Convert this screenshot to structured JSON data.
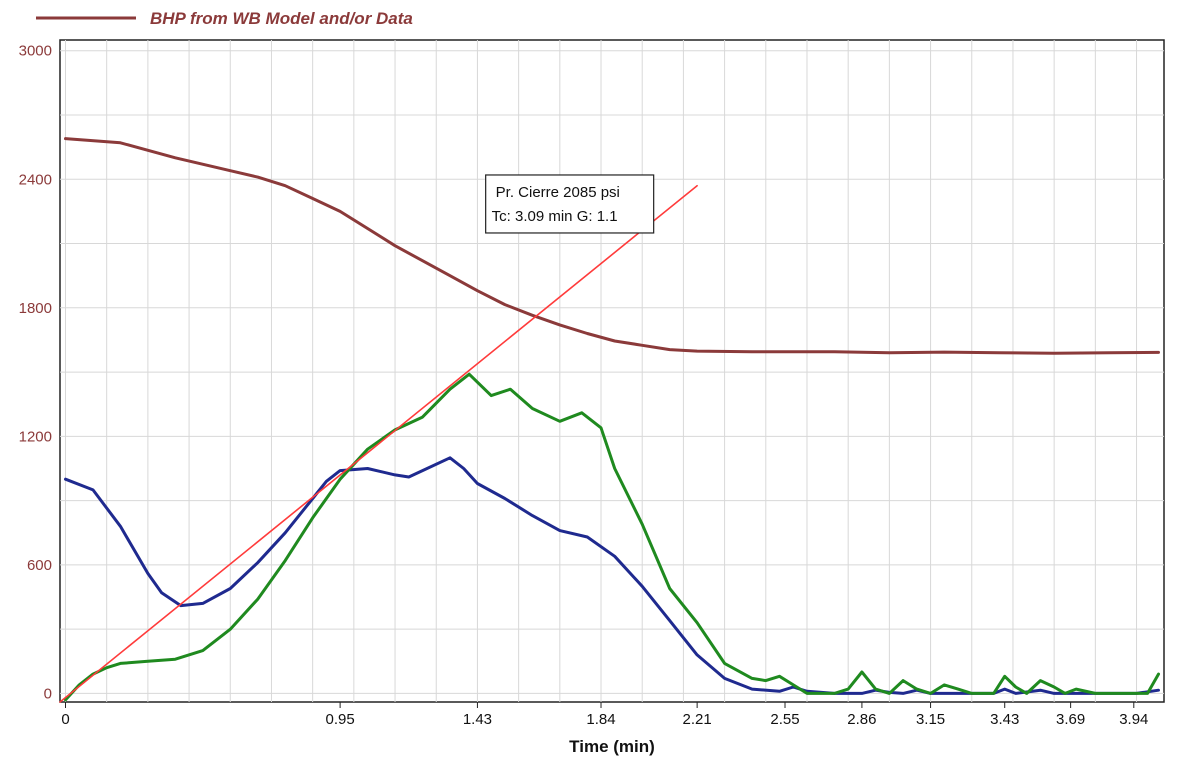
{
  "chart_data": {
    "type": "line",
    "title": "",
    "xlabel": "Time (min)",
    "ylabel": "",
    "grid": true,
    "legend": {
      "placement": "top-left",
      "entries": [
        {
          "label": "BHP from WB Model and/or Data",
          "color": "#8b3a3a"
        }
      ]
    },
    "xlim": [
      -0.02,
      4.0
    ],
    "ylim": [
      -40,
      3050
    ],
    "x_ticks": [
      {
        "value": 0,
        "label": "0"
      },
      {
        "value": 1.0,
        "label": "0.95"
      },
      {
        "value": 1.5,
        "label": "1.43"
      },
      {
        "value": 1.95,
        "label": "1.84"
      },
      {
        "value": 2.3,
        "label": "2.21"
      },
      {
        "value": 2.62,
        "label": "2.55"
      },
      {
        "value": 2.9,
        "label": "2.86"
      },
      {
        "value": 3.15,
        "label": "3.15"
      },
      {
        "value": 3.42,
        "label": "3.43"
      },
      {
        "value": 3.66,
        "label": "3.69"
      },
      {
        "value": 3.89,
        "label": "3.94"
      }
    ],
    "y_ticks": [
      0,
      600,
      1200,
      1800,
      2400,
      3000
    ],
    "annotation": {
      "lines": [
        "Pr. Cierre 2085 psi",
        "Tc: 3.09 min  G: 1.1"
      ],
      "x": 1.53,
      "y": 2420
    },
    "series": [
      {
        "name": "BHP from WB Model and/or Data",
        "color": "#8b3a3a",
        "x": [
          0,
          0.2,
          0.4,
          0.6,
          0.7,
          0.8,
          0.9,
          1.0,
          1.1,
          1.2,
          1.3,
          1.4,
          1.5,
          1.6,
          1.7,
          1.8,
          1.9,
          2.0,
          2.1,
          2.2,
          2.3,
          2.5,
          2.8,
          3.0,
          3.2,
          3.4,
          3.6,
          3.8,
          3.98
        ],
        "y": [
          2590,
          2570,
          2500,
          2440,
          2410,
          2370,
          2310,
          2250,
          2170,
          2090,
          2020,
          1950,
          1880,
          1815,
          1765,
          1720,
          1680,
          1645,
          1625,
          1605,
          1598,
          1595,
          1595,
          1590,
          1593,
          1590,
          1588,
          1590,
          1592
        ]
      },
      {
        "name": "",
        "color": "#1f2a8f",
        "x": [
          0,
          0.1,
          0.2,
          0.3,
          0.35,
          0.42,
          0.5,
          0.6,
          0.7,
          0.8,
          0.9,
          0.95,
          1.0,
          1.1,
          1.2,
          1.25,
          1.3,
          1.4,
          1.45,
          1.5,
          1.6,
          1.7,
          1.8,
          1.9,
          2.0,
          2.1,
          2.2,
          2.3,
          2.4,
          2.5,
          2.6,
          2.65,
          2.7,
          2.8,
          2.9,
          2.95,
          3.0,
          3.05,
          3.1,
          3.15,
          3.2,
          3.3,
          3.38,
          3.42,
          3.46,
          3.55,
          3.6,
          3.65,
          3.7,
          3.8,
          3.9,
          3.98
        ],
        "y": [
          1000,
          950,
          780,
          560,
          470,
          410,
          420,
          490,
          610,
          750,
          910,
          990,
          1040,
          1050,
          1020,
          1010,
          1040,
          1100,
          1050,
          980,
          910,
          830,
          760,
          730,
          640,
          500,
          340,
          180,
          70,
          20,
          10,
          30,
          10,
          0,
          0,
          15,
          5,
          0,
          15,
          0,
          0,
          0,
          0,
          20,
          0,
          15,
          0,
          0,
          0,
          0,
          0,
          15
        ]
      },
      {
        "name": "",
        "color": "#1f8a1f",
        "x": [
          0,
          0.05,
          0.1,
          0.15,
          0.2,
          0.3,
          0.4,
          0.5,
          0.6,
          0.7,
          0.8,
          0.9,
          1.0,
          1.1,
          1.2,
          1.3,
          1.4,
          1.47,
          1.55,
          1.62,
          1.7,
          1.8,
          1.88,
          1.95,
          2.0,
          2.1,
          2.2,
          2.3,
          2.4,
          2.5,
          2.55,
          2.6,
          2.65,
          2.7,
          2.8,
          2.85,
          2.9,
          2.95,
          3.0,
          3.05,
          3.1,
          3.15,
          3.2,
          3.25,
          3.3,
          3.38,
          3.42,
          3.46,
          3.5,
          3.55,
          3.6,
          3.64,
          3.68,
          3.75,
          3.85,
          3.94,
          3.98
        ],
        "y": [
          -30,
          40,
          90,
          120,
          140,
          150,
          160,
          200,
          300,
          440,
          620,
          820,
          1000,
          1140,
          1230,
          1290,
          1420,
          1490,
          1390,
          1420,
          1330,
          1270,
          1310,
          1240,
          1050,
          790,
          490,
          330,
          140,
          70,
          60,
          80,
          40,
          0,
          0,
          20,
          100,
          20,
          0,
          60,
          20,
          0,
          40,
          20,
          0,
          0,
          80,
          30,
          0,
          60,
          30,
          0,
          20,
          0,
          0,
          0,
          90
        ]
      },
      {
        "name": "",
        "color": "#ff3b3b",
        "x": [
          -0.02,
          2.3
        ],
        "y": [
          -40,
          2370
        ]
      }
    ]
  }
}
